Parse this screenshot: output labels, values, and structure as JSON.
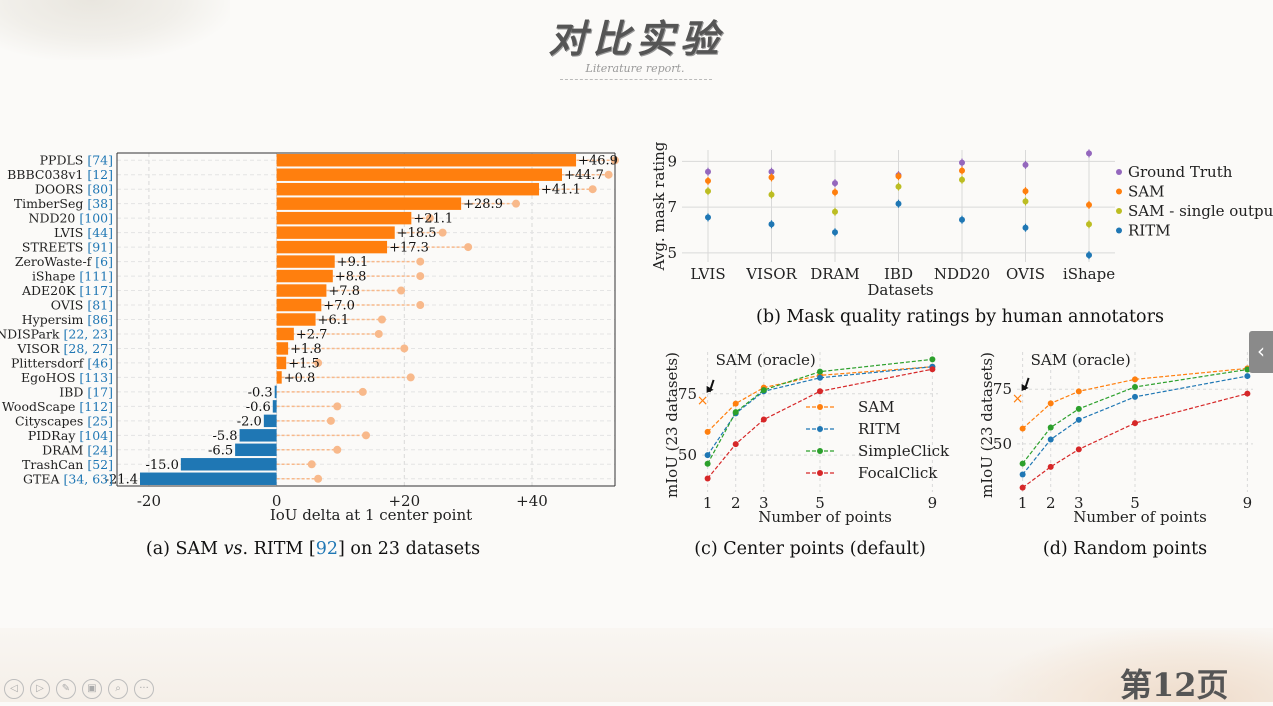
{
  "slide": {
    "title": "对比实验",
    "subtitle": "Literature report.",
    "page_label": "第12页"
  },
  "toolbar": {
    "icons": [
      "prev-icon",
      "next-icon",
      "pen-icon",
      "screen-icon",
      "zoom-icon",
      "more-icon"
    ],
    "glyphs": [
      "◁",
      "▷",
      "✎",
      "▣",
      "⌕",
      "···"
    ]
  },
  "side_tab": {
    "glyph": "‹"
  },
  "colors": {
    "orange": "#ff7f0e",
    "orange_light": "#f8b98b",
    "blue": "#1f77b4",
    "green": "#2ca02c",
    "red": "#d62728",
    "purple": "#9467bd",
    "olive": "#bcbd22",
    "grid": "#d9d9d9"
  },
  "chart_data": [
    {
      "id": "a",
      "type": "bar",
      "orientation": "horizontal",
      "caption": [
        "(a) SAM ",
        "vs",
        ". RITM [",
        "92",
        "] on 23 datasets"
      ],
      "xlabel": "IoU delta at 1 center point",
      "xlim": [
        -25,
        53
      ],
      "xticks": [
        -20,
        0,
        20,
        40
      ],
      "xtick_labels": [
        "-20",
        "0",
        "+20",
        "+40"
      ],
      "grid": true,
      "categories": [
        {
          "name": "PPDLS ",
          "ref": "[74]"
        },
        {
          "name": "BBBC038v1 ",
          "ref": "[12]"
        },
        {
          "name": "DOORS ",
          "ref": "[80]"
        },
        {
          "name": "TimberSeg ",
          "ref": "[38]"
        },
        {
          "name": "NDD20 ",
          "ref": "[100]"
        },
        {
          "name": "LVIS ",
          "ref": "[44]"
        },
        {
          "name": "STREETS ",
          "ref": "[91]"
        },
        {
          "name": "ZeroWaste-f ",
          "ref": "[6]"
        },
        {
          "name": "iShape ",
          "ref": "[111]"
        },
        {
          "name": "ADE20K ",
          "ref": "[117]"
        },
        {
          "name": "OVIS ",
          "ref": "[81]"
        },
        {
          "name": "Hypersim ",
          "ref": "[86]"
        },
        {
          "name": "NDISPark ",
          "ref": "[22, 23]"
        },
        {
          "name": "VISOR ",
          "ref": "[28, 27]"
        },
        {
          "name": "Plittersdorf ",
          "ref": "[46]"
        },
        {
          "name": "EgoHOS ",
          "ref": "[113]"
        },
        {
          "name": "IBD ",
          "ref": "[17]"
        },
        {
          "name": "WoodScape ",
          "ref": "[112]"
        },
        {
          "name": "Cityscapes ",
          "ref": "[25]"
        },
        {
          "name": "PIDRay ",
          "ref": "[104]"
        },
        {
          "name": "DRAM ",
          "ref": "[24]"
        },
        {
          "name": "TrashCan ",
          "ref": "[52]"
        },
        {
          "name": "GTEA ",
          "ref": "[34, 63]"
        }
      ],
      "values": [
        46.9,
        44.7,
        41.1,
        28.9,
        21.1,
        18.5,
        17.3,
        9.1,
        8.8,
        7.8,
        7.0,
        6.1,
        2.7,
        1.8,
        1.5,
        0.8,
        -0.3,
        -0.6,
        -2.0,
        -5.8,
        -6.5,
        -15.0,
        -21.4
      ],
      "value_labels": [
        "+46.9",
        "+44.7",
        "+41.1",
        "+28.9",
        "+21.1",
        "+18.5",
        "+17.3",
        "+9.1",
        "+8.8",
        "+7.8",
        "+7.0",
        "+6.1",
        "+2.7",
        "+1.8",
        "+1.5",
        "+0.8",
        "-0.3",
        "-0.6",
        "-2.0",
        "-5.8",
        "-6.5",
        "-15.0",
        "-21.4"
      ],
      "oracle_values": [
        53,
        52,
        49.5,
        37.5,
        24,
        26,
        30,
        22.5,
        22.5,
        19.5,
        22.5,
        16.5,
        16,
        20,
        6.5,
        21,
        13.5,
        9.5,
        8.5,
        14,
        9.5,
        5.5,
        6.5
      ]
    },
    {
      "id": "b",
      "type": "scatter",
      "caption": "(b) Mask quality ratings by human annotators",
      "xlabel": "Datasets",
      "ylabel": "Avg. mask rating",
      "ylim": [
        4.6,
        9.5
      ],
      "yticks": [
        5,
        7,
        9
      ],
      "legend_position": "right",
      "categories": [
        "LVIS",
        "VISOR",
        "DRAM",
        "IBD",
        "NDD20",
        "OVIS",
        "iShape"
      ],
      "series": [
        {
          "name": "Ground Truth",
          "color": "#9467bd",
          "values": [
            8.55,
            8.55,
            8.05,
            8.4,
            8.95,
            8.85,
            9.35
          ]
        },
        {
          "name": "SAM",
          "color": "#ff7f0e",
          "values": [
            8.15,
            8.3,
            7.65,
            8.35,
            8.6,
            7.7,
            7.1
          ]
        },
        {
          "name": "SAM - single output",
          "color": "#bcbd22",
          "values": [
            7.7,
            7.55,
            6.8,
            7.9,
            8.2,
            7.25,
            6.25
          ]
        },
        {
          "name": "RITM",
          "color": "#1f77b4",
          "values": [
            6.55,
            6.25,
            5.9,
            7.15,
            6.45,
            6.1,
            4.9
          ]
        }
      ]
    },
    {
      "id": "c",
      "type": "line",
      "caption": "(c) Center points (default)",
      "xlabel": "Number of points",
      "ylabel": "mIoU (23 datasets)",
      "x": [
        1,
        2,
        3,
        5,
        9
      ],
      "xlim": [
        0.8,
        9.2
      ],
      "ylim": [
        35,
        92
      ],
      "yticks": [
        50,
        75
      ],
      "annotation": {
        "text": "SAM (oracle)",
        "x": 1,
        "y": 72.5
      },
      "legend_position": "center",
      "series": [
        {
          "name": "SAM",
          "color": "#ff7f0e",
          "values": [
            59.5,
            71,
            77.5,
            82.5,
            86
          ]
        },
        {
          "name": "RITM",
          "color": "#1f77b4",
          "values": [
            50,
            67,
            76,
            81.5,
            86
          ]
        },
        {
          "name": "SimpleClick",
          "color": "#2ca02c",
          "values": [
            46.5,
            67.5,
            76.5,
            84,
            89
          ]
        },
        {
          "name": "FocalClick",
          "color": "#d62728",
          "values": [
            40.5,
            54.5,
            64.5,
            76,
            85
          ]
        }
      ]
    },
    {
      "id": "d",
      "type": "line",
      "caption": "(d) Random points",
      "xlabel": "Number of points",
      "ylabel": "mIoU (23 datasets)",
      "x": [
        1,
        2,
        3,
        5,
        9
      ],
      "xlim": [
        0.8,
        9.2
      ],
      "ylim": [
        28,
        92
      ],
      "yticks": [
        50,
        75
      ],
      "annotation": {
        "text": "SAM (oracle)",
        "x": 1,
        "y": 71
      },
      "series": [
        {
          "name": "SAM",
          "color": "#ff7f0e",
          "values": [
            57,
            68.5,
            74,
            79.5,
            84.5
          ]
        },
        {
          "name": "RITM",
          "color": "#1f77b4",
          "values": [
            36,
            52,
            61,
            71.5,
            81
          ]
        },
        {
          "name": "SimpleClick",
          "color": "#2ca02c",
          "values": [
            41,
            57.5,
            66,
            76,
            84
          ]
        },
        {
          "name": "FocalClick",
          "color": "#d62728",
          "values": [
            30,
            39.5,
            47.5,
            59.5,
            73
          ]
        }
      ]
    }
  ]
}
